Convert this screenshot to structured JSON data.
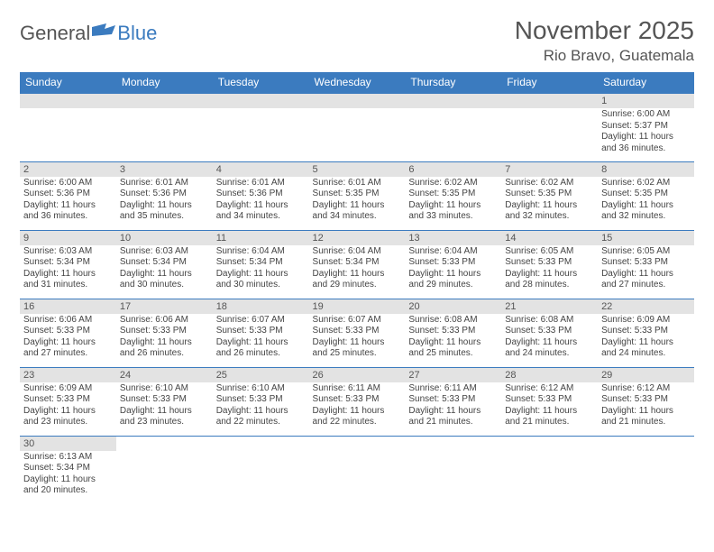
{
  "logo": {
    "part1": "General",
    "part2": "Blue"
  },
  "title": "November 2025",
  "location": "Rio Bravo, Guatemala",
  "colors": {
    "header_bg": "#3b7bbf",
    "header_text": "#ffffff",
    "daynum_bg": "#e3e3e3",
    "rule": "#3b7bbf",
    "text": "#444444"
  },
  "weekdays": [
    "Sunday",
    "Monday",
    "Tuesday",
    "Wednesday",
    "Thursday",
    "Friday",
    "Saturday"
  ],
  "weeks": [
    [
      {
        "n": "",
        "lines": []
      },
      {
        "n": "",
        "lines": []
      },
      {
        "n": "",
        "lines": []
      },
      {
        "n": "",
        "lines": []
      },
      {
        "n": "",
        "lines": []
      },
      {
        "n": "",
        "lines": []
      },
      {
        "n": "1",
        "lines": [
          "Sunrise: 6:00 AM",
          "Sunset: 5:37 PM",
          "Daylight: 11 hours",
          "and 36 minutes."
        ]
      }
    ],
    [
      {
        "n": "2",
        "lines": [
          "Sunrise: 6:00 AM",
          "Sunset: 5:36 PM",
          "Daylight: 11 hours",
          "and 36 minutes."
        ]
      },
      {
        "n": "3",
        "lines": [
          "Sunrise: 6:01 AM",
          "Sunset: 5:36 PM",
          "Daylight: 11 hours",
          "and 35 minutes."
        ]
      },
      {
        "n": "4",
        "lines": [
          "Sunrise: 6:01 AM",
          "Sunset: 5:36 PM",
          "Daylight: 11 hours",
          "and 34 minutes."
        ]
      },
      {
        "n": "5",
        "lines": [
          "Sunrise: 6:01 AM",
          "Sunset: 5:35 PM",
          "Daylight: 11 hours",
          "and 34 minutes."
        ]
      },
      {
        "n": "6",
        "lines": [
          "Sunrise: 6:02 AM",
          "Sunset: 5:35 PM",
          "Daylight: 11 hours",
          "and 33 minutes."
        ]
      },
      {
        "n": "7",
        "lines": [
          "Sunrise: 6:02 AM",
          "Sunset: 5:35 PM",
          "Daylight: 11 hours",
          "and 32 minutes."
        ]
      },
      {
        "n": "8",
        "lines": [
          "Sunrise: 6:02 AM",
          "Sunset: 5:35 PM",
          "Daylight: 11 hours",
          "and 32 minutes."
        ]
      }
    ],
    [
      {
        "n": "9",
        "lines": [
          "Sunrise: 6:03 AM",
          "Sunset: 5:34 PM",
          "Daylight: 11 hours",
          "and 31 minutes."
        ]
      },
      {
        "n": "10",
        "lines": [
          "Sunrise: 6:03 AM",
          "Sunset: 5:34 PM",
          "Daylight: 11 hours",
          "and 30 minutes."
        ]
      },
      {
        "n": "11",
        "lines": [
          "Sunrise: 6:04 AM",
          "Sunset: 5:34 PM",
          "Daylight: 11 hours",
          "and 30 minutes."
        ]
      },
      {
        "n": "12",
        "lines": [
          "Sunrise: 6:04 AM",
          "Sunset: 5:34 PM",
          "Daylight: 11 hours",
          "and 29 minutes."
        ]
      },
      {
        "n": "13",
        "lines": [
          "Sunrise: 6:04 AM",
          "Sunset: 5:33 PM",
          "Daylight: 11 hours",
          "and 29 minutes."
        ]
      },
      {
        "n": "14",
        "lines": [
          "Sunrise: 6:05 AM",
          "Sunset: 5:33 PM",
          "Daylight: 11 hours",
          "and 28 minutes."
        ]
      },
      {
        "n": "15",
        "lines": [
          "Sunrise: 6:05 AM",
          "Sunset: 5:33 PM",
          "Daylight: 11 hours",
          "and 27 minutes."
        ]
      }
    ],
    [
      {
        "n": "16",
        "lines": [
          "Sunrise: 6:06 AM",
          "Sunset: 5:33 PM",
          "Daylight: 11 hours",
          "and 27 minutes."
        ]
      },
      {
        "n": "17",
        "lines": [
          "Sunrise: 6:06 AM",
          "Sunset: 5:33 PM",
          "Daylight: 11 hours",
          "and 26 minutes."
        ]
      },
      {
        "n": "18",
        "lines": [
          "Sunrise: 6:07 AM",
          "Sunset: 5:33 PM",
          "Daylight: 11 hours",
          "and 26 minutes."
        ]
      },
      {
        "n": "19",
        "lines": [
          "Sunrise: 6:07 AM",
          "Sunset: 5:33 PM",
          "Daylight: 11 hours",
          "and 25 minutes."
        ]
      },
      {
        "n": "20",
        "lines": [
          "Sunrise: 6:08 AM",
          "Sunset: 5:33 PM",
          "Daylight: 11 hours",
          "and 25 minutes."
        ]
      },
      {
        "n": "21",
        "lines": [
          "Sunrise: 6:08 AM",
          "Sunset: 5:33 PM",
          "Daylight: 11 hours",
          "and 24 minutes."
        ]
      },
      {
        "n": "22",
        "lines": [
          "Sunrise: 6:09 AM",
          "Sunset: 5:33 PM",
          "Daylight: 11 hours",
          "and 24 minutes."
        ]
      }
    ],
    [
      {
        "n": "23",
        "lines": [
          "Sunrise: 6:09 AM",
          "Sunset: 5:33 PM",
          "Daylight: 11 hours",
          "and 23 minutes."
        ]
      },
      {
        "n": "24",
        "lines": [
          "Sunrise: 6:10 AM",
          "Sunset: 5:33 PM",
          "Daylight: 11 hours",
          "and 23 minutes."
        ]
      },
      {
        "n": "25",
        "lines": [
          "Sunrise: 6:10 AM",
          "Sunset: 5:33 PM",
          "Daylight: 11 hours",
          "and 22 minutes."
        ]
      },
      {
        "n": "26",
        "lines": [
          "Sunrise: 6:11 AM",
          "Sunset: 5:33 PM",
          "Daylight: 11 hours",
          "and 22 minutes."
        ]
      },
      {
        "n": "27",
        "lines": [
          "Sunrise: 6:11 AM",
          "Sunset: 5:33 PM",
          "Daylight: 11 hours",
          "and 21 minutes."
        ]
      },
      {
        "n": "28",
        "lines": [
          "Sunrise: 6:12 AM",
          "Sunset: 5:33 PM",
          "Daylight: 11 hours",
          "and 21 minutes."
        ]
      },
      {
        "n": "29",
        "lines": [
          "Sunrise: 6:12 AM",
          "Sunset: 5:33 PM",
          "Daylight: 11 hours",
          "and 21 minutes."
        ]
      }
    ],
    [
      {
        "n": "30",
        "lines": [
          "Sunrise: 6:13 AM",
          "Sunset: 5:34 PM",
          "Daylight: 11 hours",
          "and 20 minutes."
        ]
      },
      {
        "n": "",
        "lines": []
      },
      {
        "n": "",
        "lines": []
      },
      {
        "n": "",
        "lines": []
      },
      {
        "n": "",
        "lines": []
      },
      {
        "n": "",
        "lines": []
      },
      {
        "n": "",
        "lines": []
      }
    ]
  ]
}
